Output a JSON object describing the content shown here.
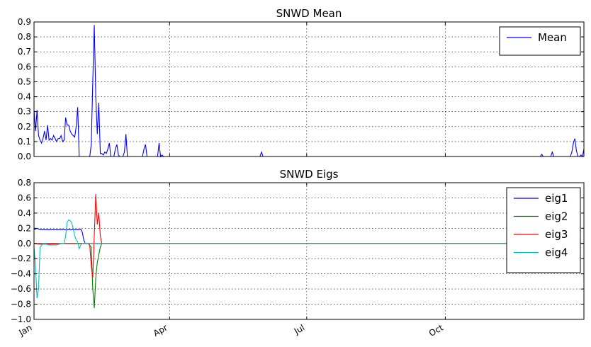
{
  "chart_data": [
    {
      "type": "line",
      "title": "SNWD Mean",
      "xlabel": "",
      "ylabel": "",
      "xlim": [
        0,
        365
      ],
      "ylim": [
        0,
        0.9
      ],
      "yticks": [
        0.0,
        0.1,
        0.2,
        0.3,
        0.4,
        0.5,
        0.6,
        0.7,
        0.8,
        0.9
      ],
      "ytick_labels": [
        "0.0",
        "0.1",
        "0.2",
        "0.3",
        "0.4",
        "0.5",
        "0.6",
        "0.7",
        "0.8",
        "0.9"
      ],
      "xticks": [
        0,
        90,
        181,
        273
      ],
      "grid": true,
      "legend_position": "top-right",
      "series": [
        {
          "name": "Mean",
          "color": "#0000ff",
          "points": [
            [
              0,
              0.31
            ],
            [
              1,
              0.17
            ],
            [
              2,
              0.31
            ],
            [
              3,
              0.14
            ],
            [
              4,
              0.11
            ],
            [
              5,
              0.09
            ],
            [
              6,
              0.12
            ],
            [
              7,
              0.17
            ],
            [
              8,
              0.11
            ],
            [
              9,
              0.21
            ],
            [
              10,
              0.11
            ],
            [
              11,
              0.12
            ],
            [
              12,
              0.11
            ],
            [
              13,
              0.14
            ],
            [
              14,
              0.12
            ],
            [
              15,
              0.1
            ],
            [
              16,
              0.12
            ],
            [
              17,
              0.12
            ],
            [
              18,
              0.14
            ],
            [
              19,
              0.1
            ],
            [
              20,
              0.11
            ],
            [
              21,
              0.26
            ],
            [
              22,
              0.21
            ],
            [
              23,
              0.21
            ],
            [
              24,
              0.17
            ],
            [
              25,
              0.15
            ],
            [
              26,
              0.14
            ],
            [
              27,
              0.13
            ],
            [
              28,
              0.2
            ],
            [
              29,
              0.33
            ],
            [
              30,
              0.0
            ],
            [
              37,
              0.0
            ],
            [
              38,
              0.08
            ],
            [
              39,
              0.5
            ],
            [
              40,
              0.88
            ],
            [
              41,
              0.4
            ],
            [
              42,
              0.15
            ],
            [
              43,
              0.36
            ],
            [
              44,
              0.02
            ],
            [
              45,
              0.02
            ],
            [
              46,
              0.01
            ],
            [
              47,
              0.03
            ],
            [
              48,
              0.02
            ],
            [
              49,
              0.05
            ],
            [
              50,
              0.09
            ],
            [
              51,
              0.0
            ],
            [
              53,
              0.0
            ],
            [
              54,
              0.05
            ],
            [
              55,
              0.08
            ],
            [
              56,
              0.01
            ],
            [
              57,
              0.0
            ],
            [
              58,
              0.0
            ],
            [
              59,
              0.0
            ],
            [
              60,
              0.03
            ],
            [
              61,
              0.15
            ],
            [
              62,
              0.0
            ],
            [
              72,
              0.0
            ],
            [
              73,
              0.05
            ],
            [
              74,
              0.08
            ],
            [
              75,
              0.0
            ],
            [
              82,
              0.0
            ],
            [
              83,
              0.09
            ],
            [
              84,
              0.0
            ],
            [
              85,
              0.01
            ],
            [
              86,
              0.0
            ],
            [
              150,
              0.0
            ],
            [
              151,
              0.03
            ],
            [
              152,
              0.0
            ],
            [
              336,
              0.0
            ],
            [
              337,
              0.015
            ],
            [
              338,
              0.0
            ],
            [
              343,
              0.0
            ],
            [
              344,
              0.03
            ],
            [
              345,
              0.0
            ],
            [
              356,
              0.0
            ],
            [
              357,
              0.03
            ],
            [
              358,
              0.09
            ],
            [
              359,
              0.12
            ],
            [
              360,
              0.04
            ],
            [
              361,
              0.0
            ],
            [
              362,
              0.0
            ],
            [
              363,
              0.01
            ],
            [
              364,
              0.0
            ],
            [
              365,
              0.05
            ]
          ]
        }
      ]
    },
    {
      "type": "line",
      "title": "SNWD Eigs",
      "xlabel": "",
      "ylabel": "",
      "xlim": [
        0,
        365
      ],
      "ylim": [
        -1.0,
        0.8
      ],
      "yticks": [
        -1.0,
        -0.8,
        -0.6,
        -0.4,
        -0.2,
        0.0,
        0.2,
        0.4,
        0.6,
        0.8
      ],
      "ytick_labels": [
        "−1.0",
        "−0.8",
        "−0.6",
        "−0.4",
        "−0.2",
        "0.0",
        "0.2",
        "0.4",
        "0.6",
        "0.8"
      ],
      "xticks": [
        0,
        90,
        181,
        273
      ],
      "xtick_labels": [
        "Jan",
        "Apr",
        "Jul",
        "Oct"
      ],
      "grid": true,
      "legend_position": "top-right",
      "series": [
        {
          "name": "eig1",
          "color": "#0000ff",
          "points": [
            [
              0,
              0.18
            ],
            [
              1,
              0.19
            ],
            [
              2,
              0.2
            ],
            [
              3,
              0.19
            ],
            [
              4,
              0.18
            ],
            [
              6,
              0.18
            ],
            [
              10,
              0.18
            ],
            [
              20,
              0.18
            ],
            [
              30,
              0.18
            ],
            [
              31,
              0.19
            ],
            [
              32,
              0.15
            ],
            [
              33,
              0.05
            ],
            [
              34,
              0.0
            ],
            [
              45,
              0.0
            ],
            [
              90,
              0.0
            ],
            [
              365,
              0.0
            ]
          ]
        },
        {
          "name": "eig2",
          "color": "#008000",
          "points": [
            [
              0,
              0.0
            ],
            [
              30,
              0.0
            ],
            [
              36,
              0.0
            ],
            [
              38,
              -0.05
            ],
            [
              39,
              -0.6
            ],
            [
              40,
              -0.85
            ],
            [
              41,
              -0.45
            ],
            [
              42,
              -0.25
            ],
            [
              43,
              -0.15
            ],
            [
              44,
              -0.05
            ],
            [
              45,
              0.0
            ],
            [
              90,
              0.0
            ],
            [
              365,
              0.0
            ]
          ]
        },
        {
          "name": "eig3",
          "color": "#ff0000",
          "points": [
            [
              0,
              0.0
            ],
            [
              5,
              -0.01
            ],
            [
              10,
              -0.01
            ],
            [
              20,
              0.0
            ],
            [
              36,
              0.0
            ],
            [
              37,
              -0.02
            ],
            [
              38,
              -0.3
            ],
            [
              39,
              -0.45
            ],
            [
              40,
              0.1
            ],
            [
              41,
              0.65
            ],
            [
              42,
              0.25
            ],
            [
              43,
              0.4
            ],
            [
              44,
              0.1
            ],
            [
              45,
              0.0
            ],
            [
              90,
              0.0
            ],
            [
              365,
              0.0
            ]
          ]
        },
        {
          "name": "eig4",
          "color": "#00bfbf",
          "points": [
            [
              0,
              -0.05
            ],
            [
              1,
              -0.3
            ],
            [
              2,
              -0.72
            ],
            [
              3,
              -0.6
            ],
            [
              4,
              -0.05
            ],
            [
              6,
              0.0
            ],
            [
              10,
              -0.02
            ],
            [
              15,
              -0.02
            ],
            [
              18,
              0.0
            ],
            [
              20,
              0.0
            ],
            [
              21,
              0.1
            ],
            [
              22,
              0.28
            ],
            [
              23,
              0.31
            ],
            [
              24,
              0.3
            ],
            [
              25,
              0.27
            ],
            [
              26,
              0.2
            ],
            [
              27,
              0.1
            ],
            [
              28,
              0.05
            ],
            [
              29,
              0.02
            ],
            [
              30,
              -0.07
            ],
            [
              31,
              -0.02
            ],
            [
              32,
              0.0
            ],
            [
              90,
              0.0
            ],
            [
              365,
              0.0
            ]
          ]
        }
      ]
    }
  ]
}
